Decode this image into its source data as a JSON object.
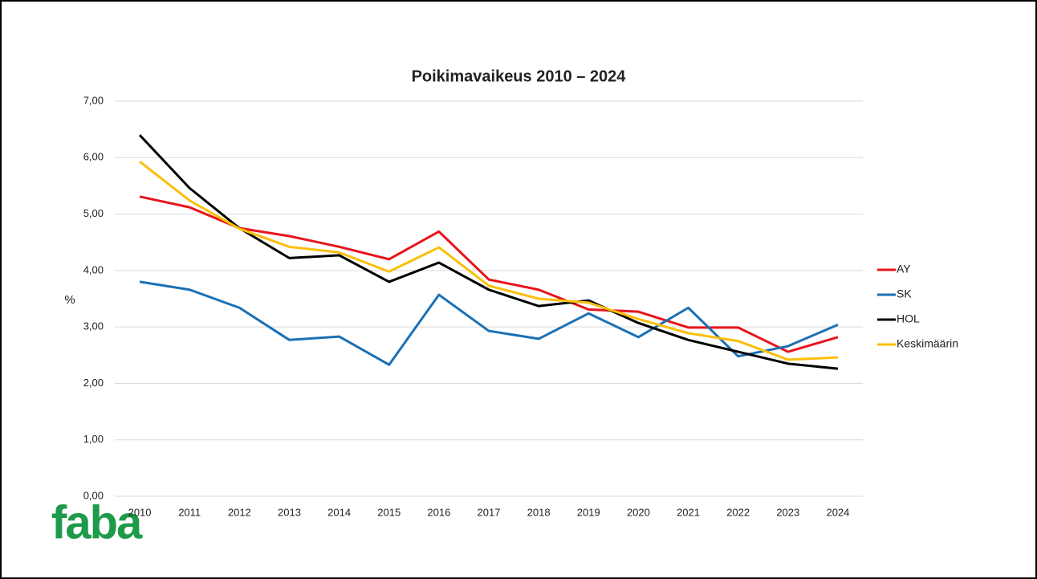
{
  "chart_data": {
    "type": "line",
    "title": "Poikimavaikeus 2010 – 2024",
    "ylabel": "%",
    "categories": [
      "2010",
      "2011",
      "2012",
      "2013",
      "2014",
      "2015",
      "2016",
      "2017",
      "2018",
      "2019",
      "2020",
      "2021",
      "2022",
      "2023",
      "2024"
    ],
    "series": [
      {
        "name": "AY",
        "color": "#e8141b",
        "values": [
          5.31,
          5.12,
          4.75,
          4.61,
          4.42,
          4.2,
          4.69,
          3.84,
          3.66,
          3.31,
          3.27,
          2.99,
          2.99,
          2.56,
          2.82
        ]
      },
      {
        "name": "SK",
        "color": "#1b70b5",
        "values": [
          3.8,
          3.66,
          3.34,
          2.77,
          2.83,
          2.33,
          3.57,
          2.93,
          2.79,
          3.24,
          2.82,
          3.34,
          2.48,
          2.66,
          3.04
        ]
      },
      {
        "name": "HOL",
        "color": "#000000",
        "values": [
          6.4,
          5.46,
          4.75,
          4.22,
          4.27,
          3.8,
          4.14,
          3.66,
          3.37,
          3.47,
          3.07,
          2.77,
          2.56,
          2.35,
          2.26
        ]
      },
      {
        "name": "Keskimäärin",
        "color": "#fbbf0b",
        "values": [
          5.93,
          5.24,
          4.74,
          4.42,
          4.32,
          3.98,
          4.41,
          3.73,
          3.5,
          3.43,
          3.14,
          2.89,
          2.75,
          2.42,
          2.46
        ]
      }
    ],
    "ylim": [
      0,
      7
    ],
    "yticks": [
      {
        "value": 0,
        "label": "0,00"
      },
      {
        "value": 1,
        "label": "1,00"
      },
      {
        "value": 2,
        "label": "2,00"
      },
      {
        "value": 3,
        "label": "3,00"
      },
      {
        "value": 4,
        "label": "4,00"
      },
      {
        "value": 5,
        "label": "5,00"
      },
      {
        "value": 6,
        "label": "6,00"
      },
      {
        "value": 7,
        "label": "7,00"
      }
    ],
    "grid": true,
    "legend": "right"
  },
  "logo": "faba"
}
